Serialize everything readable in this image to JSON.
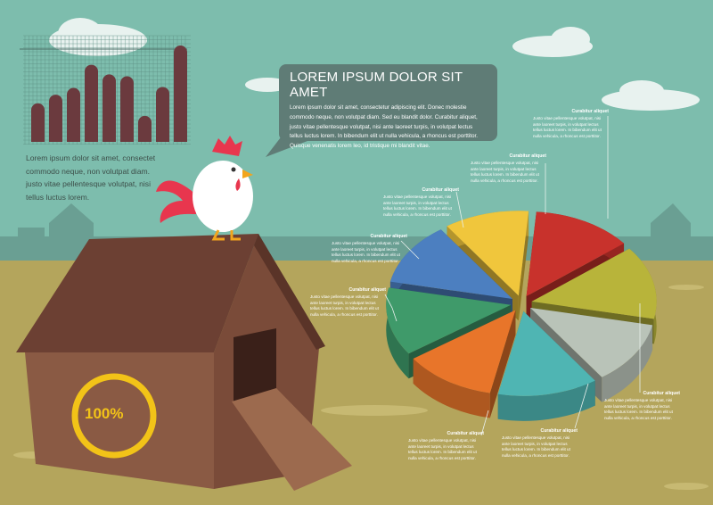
{
  "headline": {
    "title": "LOREM IPSUM DOLOR SIT AMET",
    "body": "Lorem ipsum dolor sit amet, consectetur adipiscing elit. Donec molestie commodo neque, non volutpat diam. Sed eu blandit dolor. Curabitur aliquet, justo vitae pellentesque volutpat, nisi ante laoreet turpis, in volutpat lectus tellus luctus lorem. In bibendum elit ut nulla vehicula, a rhoncus est porttitor. Quisque venenatis lorem leo, id tristique mi blandit vitae."
  },
  "left_text": "Lorem ipsum dolor sit amet, consectet commodo neque, non volutpat diam. justo vitae pellentesque volutpat, nisi tellus luctus lorem.",
  "progress": {
    "label": "100%",
    "value": 100,
    "color": "#f2c318"
  },
  "callouts": [
    {
      "title": "Curabitur aliquet",
      "body": "Justo vitae pellentesque volutpat, nisi ante laoreet turpis, in volutpat lectus tellus luctus lorem. In bibendum elit ut nulla vehicula, a rhoncus est porttitor."
    },
    {
      "title": "Curabitur aliquet",
      "body": "Justo vitae pellentesque volutpat, nisi ante laoreet turpis, in volutpat lectus tellus luctus lorem. In bibendum elit ut nulla vehicula, a rhoncus est porttitor."
    },
    {
      "title": "Curabitur aliquet",
      "body": "Justo vitae pellentesque volutpat, nisi ante laoreet turpis, in volutpat lectus tellus luctus lorem. In bibendum elit ut nulla vehicula, a rhoncus est porttitor."
    },
    {
      "title": "Curabitur aliquet",
      "body": "Justo vitae pellentesque volutpat, nisi ante laoreet turpis, in volutpat lectus tellus luctus lorem. In bibendum elit ut nulla vehicula, a rhoncus est porttitor."
    },
    {
      "title": "Curabitur aliquet",
      "body": "Justo vitae pellentesque volutpat, nisi ante laoreet turpis, in volutpat lectus tellus luctus lorem. In bibendum elit ut nulla vehicula, a rhoncus est porttitor."
    },
    {
      "title": "Curabitur aliquet",
      "body": "Justo vitae pellentesque volutpat, nisi ante laoreet turpis, in volutpat lectus tellus luctus lorem. In bibendum elit ut nulla vehicula, a rhoncus est porttitor."
    },
    {
      "title": "Curabitur aliquet",
      "body": "Justo vitae pellentesque volutpat, nisi ante laoreet turpis, in volutpat lectus tellus luctus lorem. In bibendum elit ut nulla vehicula, a rhoncus est porttitor."
    },
    {
      "title": "Curabitur aliquet",
      "body": "Justo vitae pellentesque volutpat, nisi ante laoreet turpis, in volutpat lectus tellus luctus lorem. In bibendum elit ut nulla vehicula, a rhoncus est porttitor."
    }
  ],
  "chart_data": [
    {
      "type": "bar",
      "values": [
        40,
        49,
        56,
        80,
        70,
        68,
        27,
        57,
        100
      ],
      "color": "#6b3a3e",
      "grid": true
    },
    {
      "type": "pie",
      "style": "3d-exploded",
      "values": [
        11,
        13,
        14,
        12,
        13,
        12,
        13,
        12
      ],
      "colors": [
        "#f0c63c",
        "#c8322c",
        "#b8b43a",
        "#b9c3b8",
        "#4fb5b3",
        "#e8752a",
        "#3f9a6a",
        "#4c7fc0"
      ]
    }
  ]
}
